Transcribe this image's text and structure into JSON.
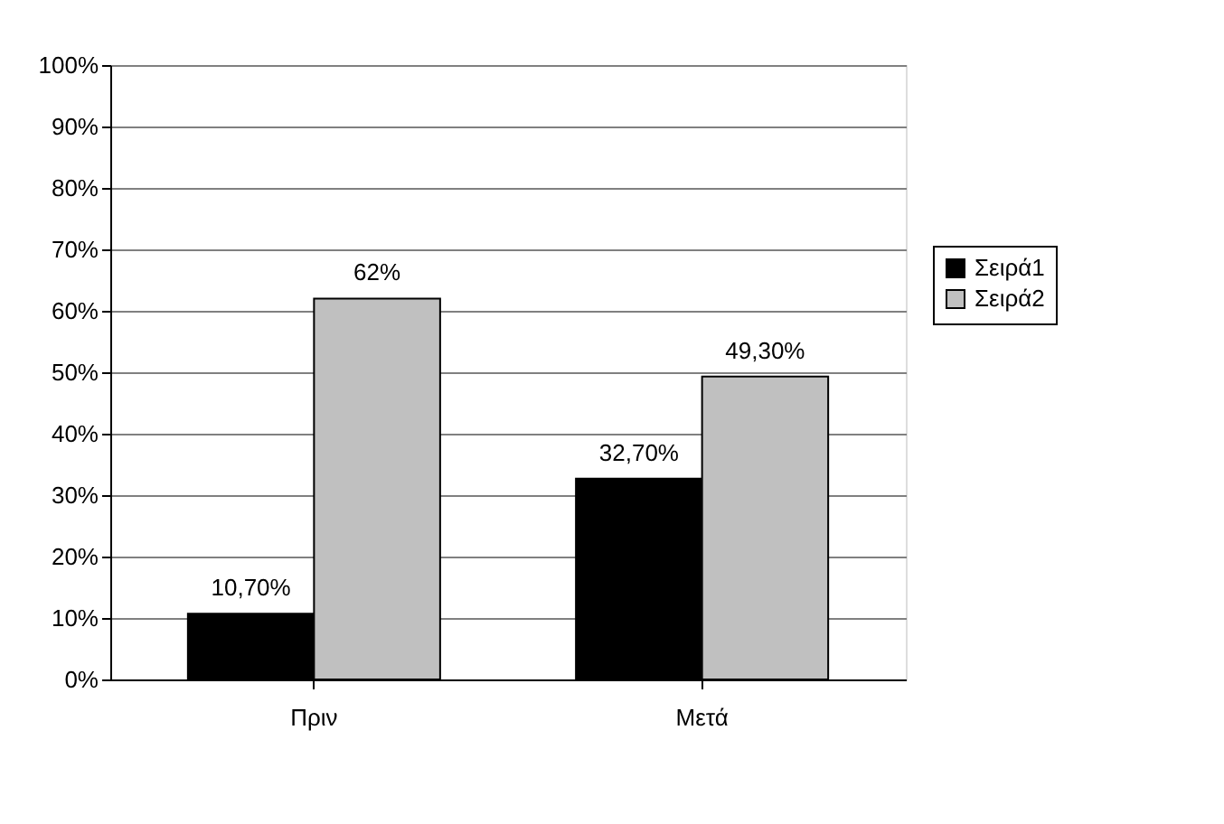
{
  "chart_data": {
    "type": "bar",
    "categories": [
      "Πριν",
      "Μετά"
    ],
    "series": [
      {
        "name": "Σειρά1",
        "color": "#000000",
        "values": [
          10.7,
          32.7
        ],
        "value_labels": [
          "10,70%",
          "32,70%"
        ]
      },
      {
        "name": "Σειρά2",
        "color": "#c0c0c0",
        "values": [
          62,
          49.3
        ],
        "value_labels": [
          "62%",
          "49,30%"
        ]
      }
    ],
    "ylim": [
      0,
      100
    ],
    "yticks": [
      {
        "value": 0,
        "label": "0%"
      },
      {
        "value": 10,
        "label": "10%"
      },
      {
        "value": 20,
        "label": "20%"
      },
      {
        "value": 30,
        "label": "30%"
      },
      {
        "value": 40,
        "label": "40%"
      },
      {
        "value": 50,
        "label": "50%"
      },
      {
        "value": 60,
        "label": "60%"
      },
      {
        "value": 70,
        "label": "70%"
      },
      {
        "value": 80,
        "label": "80%"
      },
      {
        "value": 90,
        "label": "90%"
      },
      {
        "value": 100,
        "label": "100%"
      }
    ],
    "grid": "y",
    "legend": "right"
  }
}
